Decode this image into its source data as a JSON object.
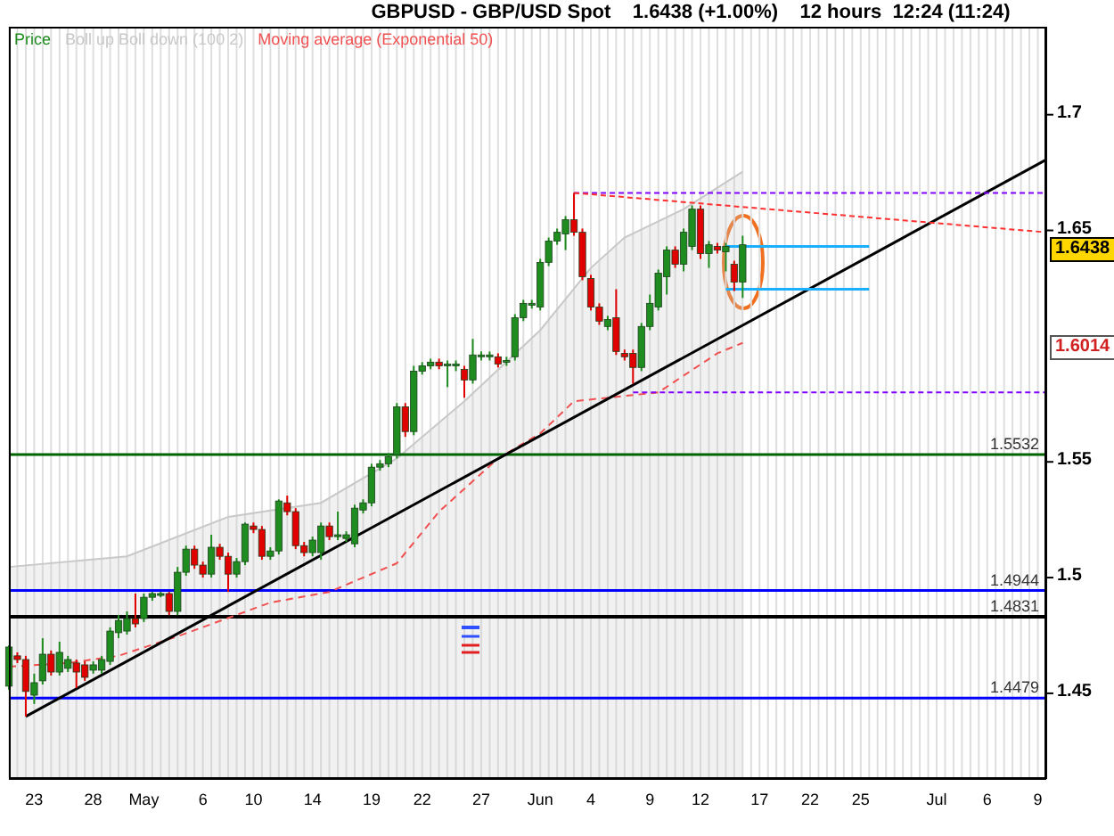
{
  "chart_data": {
    "type": "candlestick",
    "title": "GBPUSD - GBP/USD Spot    1.6438 (+1.00%)    12 hours  12:24 (11:24)",
    "categories": [
      null,
      null,
      null,
      "23",
      null,
      null,
      null,
      null,
      null,
      null,
      "28",
      null,
      null,
      null,
      null,
      null,
      "May",
      null,
      null,
      null,
      null,
      null,
      null,
      "6",
      null,
      null,
      null,
      null,
      null,
      "10",
      null,
      null,
      null,
      null,
      null,
      null,
      "14",
      null,
      null,
      null,
      null,
      null,
      null,
      "19",
      null,
      null,
      null,
      null,
      null,
      "22",
      null,
      null,
      null,
      null,
      null,
      null,
      "27",
      null,
      null,
      null,
      null,
      null,
      null,
      "Jun",
      null,
      null,
      null,
      null,
      null,
      "4",
      null,
      null,
      null,
      null,
      null,
      null,
      "9",
      null,
      null,
      null,
      null,
      null,
      "12",
      null,
      null,
      null,
      null,
      null,
      null,
      "17",
      null,
      null,
      null,
      null,
      null,
      "22",
      null,
      null,
      null,
      null,
      null,
      "25",
      null,
      null,
      null,
      null,
      null,
      null,
      null,
      null,
      "Jul",
      null,
      null,
      null,
      null,
      null,
      "6",
      null,
      null,
      null,
      null,
      null,
      "9",
      null
    ],
    "series": [
      {
        "name": "Boll up Boll down (100 2)",
        "type": "area",
        "color": "#c8c8c8",
        "values": [
          1.5046,
          null,
          null,
          null,
          null,
          null,
          null,
          null,
          null,
          null,
          null,
          null,
          null,
          null,
          1.5092,
          null,
          null,
          null,
          null,
          null,
          null,
          null,
          null,
          null,
          null,
          null,
          1.5262,
          null,
          null,
          null,
          null,
          null,
          null,
          null,
          null,
          null,
          null,
          1.5323,
          null,
          null,
          null,
          null,
          null,
          null,
          null,
          null,
          1.5515,
          null,
          null,
          null,
          null,
          null,
          null,
          null,
          1.5762,
          null,
          null,
          null,
          null,
          null,
          null,
          null,
          null,
          1.6069,
          null,
          null,
          null,
          null,
          null,
          1.6338,
          null,
          null,
          null,
          1.6469,
          null,
          null,
          null,
          null,
          null,
          null,
          1.6592,
          null,
          null,
          null,
          null,
          null,
          null,
          1.6754,
          null,
          null,
          null,
          null,
          null,
          null,
          null,
          null,
          null,
          null,
          null,
          null,
          null,
          null,
          null,
          null,
          null,
          null,
          null,
          null,
          null,
          null,
          null,
          null,
          null,
          null,
          null,
          null,
          null,
          null,
          null,
          null,
          null,
          null,
          null,
          null
        ]
      },
      {
        "name": "Moving average (Exponential 50)",
        "type": "line",
        "color": "#f05050",
        "line_style": "dashed",
        "values": [
          1.4615,
          null,
          null,
          null,
          null,
          null,
          null,
          1.4631,
          null,
          null,
          null,
          null,
          null,
          1.4662,
          null,
          null,
          null,
          null,
          null,
          null,
          1.4746,
          null,
          null,
          null,
          null,
          null,
          null,
          null,
          null,
          null,
          null,
          1.4892,
          null,
          null,
          null,
          null,
          null,
          null,
          1.4938,
          null,
          null,
          null,
          null,
          null,
          null,
          null,
          1.5062,
          null,
          null,
          null,
          null,
          1.5285,
          null,
          null,
          null,
          null,
          null,
          null,
          1.5515,
          null,
          null,
          null,
          null,
          1.5623,
          null,
          null,
          null,
          1.5762,
          null,
          null,
          null,
          null,
          null,
          null,
          null,
          null,
          null,
          1.58,
          null,
          null,
          null,
          null,
          null,
          null,
          1.5969,
          null,
          null,
          1.6014,
          null,
          null,
          null,
          null,
          null,
          null,
          null,
          null,
          null,
          null,
          null,
          null,
          null,
          null,
          null,
          null,
          null,
          null,
          null,
          null,
          null,
          null,
          null,
          null,
          null,
          null,
          null,
          null,
          null,
          null,
          null,
          null,
          null,
          null,
          null,
          null
        ]
      },
      {
        "type": "line",
        "color": "#000000",
        "line_style": "solid",
        "values": [
          null,
          null,
          1.44,
          null,
          null,
          null,
          null,
          null,
          null,
          null,
          null,
          null,
          null,
          null,
          null,
          null,
          null,
          null,
          null,
          null,
          null,
          null,
          null,
          null,
          null,
          null,
          null,
          null,
          null,
          null,
          null,
          null,
          null,
          null,
          null,
          null,
          null,
          null,
          null,
          null,
          null,
          null,
          null,
          null,
          null,
          null,
          null,
          null,
          null,
          null,
          null,
          null,
          null,
          null,
          null,
          null,
          null,
          null,
          null,
          null,
          null,
          null,
          null,
          null,
          null,
          null,
          null,
          null,
          null,
          null,
          null,
          null,
          null,
          null,
          null,
          null,
          null,
          null,
          null,
          null,
          null,
          null,
          null,
          null,
          null,
          null,
          null,
          null,
          null,
          null,
          null,
          null,
          null,
          null,
          null,
          null,
          null,
          null,
          null,
          null,
          null,
          null,
          null,
          null,
          null,
          null,
          null,
          null,
          null,
          null,
          null,
          null,
          null,
          null,
          null,
          null,
          null,
          null,
          null,
          null,
          null,
          null,
          null,
          1.6806
        ]
      },
      {
        "type": "line",
        "color": "#8000ff",
        "line_style": "dotted",
        "values": [
          null,
          null,
          null,
          null,
          null,
          null,
          null,
          null,
          null,
          null,
          null,
          null,
          null,
          null,
          null,
          null,
          null,
          null,
          null,
          null,
          null,
          null,
          null,
          null,
          null,
          null,
          null,
          null,
          null,
          null,
          null,
          null,
          null,
          null,
          null,
          null,
          null,
          null,
          null,
          null,
          null,
          null,
          null,
          null,
          null,
          null,
          null,
          null,
          null,
          null,
          null,
          null,
          null,
          null,
          null,
          null,
          null,
          null,
          null,
          null,
          null,
          null,
          null,
          null,
          null,
          null,
          null,
          1.6662,
          null,
          null,
          null,
          null,
          null,
          null,
          null,
          null,
          null,
          null,
          null,
          null,
          null,
          null,
          null,
          null,
          null,
          null,
          null,
          null,
          null,
          null,
          null,
          null,
          null,
          null,
          null,
          null,
          null,
          null,
          null,
          null,
          null,
          null,
          null,
          null,
          null,
          null,
          null,
          null,
          null,
          null,
          null,
          null,
          null,
          null,
          null,
          null,
          null,
          null,
          null,
          null,
          null,
          null,
          null,
          1.6662
        ]
      },
      {
        "type": "line",
        "color": "#8000ff",
        "line_style": "dotted",
        "values": [
          null,
          null,
          null,
          null,
          null,
          null,
          null,
          null,
          null,
          null,
          null,
          null,
          null,
          null,
          null,
          null,
          null,
          null,
          null,
          null,
          null,
          null,
          null,
          null,
          null,
          null,
          null,
          null,
          null,
          null,
          null,
          null,
          null,
          null,
          null,
          null,
          null,
          null,
          null,
          null,
          null,
          null,
          null,
          null,
          null,
          null,
          null,
          null,
          null,
          null,
          null,
          null,
          null,
          null,
          null,
          null,
          null,
          null,
          null,
          null,
          null,
          null,
          null,
          null,
          null,
          null,
          null,
          null,
          null,
          null,
          null,
          null,
          null,
          null,
          1.58,
          null,
          null,
          null,
          null,
          null,
          null,
          null,
          null,
          null,
          null,
          null,
          null,
          null,
          null,
          null,
          null,
          null,
          null,
          null,
          null,
          null,
          null,
          null,
          null,
          null,
          null,
          null,
          null,
          null,
          null,
          null,
          null,
          null,
          null,
          null,
          null,
          null,
          null,
          null,
          null,
          null,
          null,
          null,
          null,
          null,
          null,
          null,
          null,
          1.58
        ]
      },
      {
        "type": "line",
        "color": "#ff3030",
        "line_style": "dotted",
        "values": [
          null,
          null,
          null,
          null,
          null,
          null,
          null,
          null,
          null,
          null,
          null,
          null,
          null,
          null,
          null,
          null,
          null,
          null,
          null,
          null,
          null,
          null,
          null,
          null,
          null,
          null,
          null,
          null,
          null,
          null,
          null,
          null,
          null,
          null,
          null,
          null,
          null,
          null,
          null,
          null,
          null,
          null,
          null,
          null,
          null,
          null,
          null,
          null,
          null,
          null,
          null,
          null,
          null,
          null,
          null,
          null,
          null,
          null,
          null,
          null,
          null,
          null,
          null,
          null,
          null,
          null,
          null,
          1.6662,
          null,
          null,
          null,
          null,
          null,
          null,
          null,
          null,
          null,
          null,
          null,
          null,
          null,
          null,
          null,
          null,
          null,
          null,
          null,
          null,
          null,
          null,
          null,
          null,
          null,
          null,
          null,
          null,
          null,
          null,
          null,
          null,
          null,
          null,
          null,
          null,
          null,
          null,
          null,
          null,
          null,
          null,
          null,
          null,
          null,
          null,
          null,
          null,
          null,
          null,
          null,
          null,
          null,
          null,
          null,
          1.6492
        ]
      },
      {
        "type": "line",
        "color": "#1ab0ff",
        "line_style": "solid",
        "values": [
          null,
          null,
          null,
          null,
          null,
          null,
          null,
          null,
          null,
          null,
          null,
          null,
          null,
          null,
          null,
          null,
          null,
          null,
          null,
          null,
          null,
          null,
          null,
          null,
          null,
          null,
          null,
          null,
          null,
          null,
          null,
          null,
          null,
          null,
          null,
          null,
          null,
          null,
          null,
          null,
          null,
          null,
          null,
          null,
          null,
          null,
          null,
          null,
          null,
          null,
          null,
          null,
          null,
          null,
          null,
          null,
          null,
          null,
          null,
          null,
          null,
          null,
          null,
          null,
          null,
          null,
          null,
          null,
          null,
          null,
          null,
          null,
          null,
          null,
          null,
          null,
          null,
          null,
          null,
          null,
          null,
          null,
          null,
          null,
          null,
          1.6431,
          null,
          null,
          null,
          null,
          null,
          null,
          null,
          null,
          null,
          null,
          null,
          null,
          null,
          null,
          null,
          null,
          1.6431,
          null,
          null,
          null,
          null,
          null,
          null,
          null,
          null,
          null,
          null,
          null,
          null,
          null,
          null,
          null,
          null,
          null,
          null,
          null,
          null,
          null
        ]
      },
      {
        "type": "line",
        "color": "#1ab0ff",
        "line_style": "solid",
        "values": [
          null,
          null,
          null,
          null,
          null,
          null,
          null,
          null,
          null,
          null,
          null,
          null,
          null,
          null,
          null,
          null,
          null,
          null,
          null,
          null,
          null,
          null,
          null,
          null,
          null,
          null,
          null,
          null,
          null,
          null,
          null,
          null,
          null,
          null,
          null,
          null,
          null,
          null,
          null,
          null,
          null,
          null,
          null,
          null,
          null,
          null,
          null,
          null,
          null,
          null,
          null,
          null,
          null,
          null,
          null,
          null,
          null,
          null,
          null,
          null,
          null,
          null,
          null,
          null,
          null,
          null,
          null,
          null,
          null,
          null,
          null,
          null,
          null,
          null,
          null,
          null,
          null,
          null,
          null,
          null,
          null,
          null,
          null,
          null,
          null,
          1.6246,
          null,
          null,
          null,
          null,
          null,
          null,
          null,
          null,
          null,
          null,
          null,
          null,
          null,
          null,
          null,
          null,
          1.6246,
          null,
          null,
          null,
          null,
          null,
          null,
          null,
          null,
          null,
          null,
          null,
          null,
          null,
          null,
          null,
          null,
          null,
          null,
          null,
          null,
          null
        ]
      },
      {
        "name": "Price",
        "type": "candlestick",
        "color": "#1e8c1e",
        "colors": [
          "#1e8c1e",
          "#e00000",
          "#e00000",
          "#1e8c1e",
          "#1e8c1e",
          "#e00000",
          "#1e8c1e",
          "#1e8c1e",
          "#e00000",
          "#e00000",
          "#1e8c1e",
          "#1e8c1e",
          "#1e8c1e",
          "#1e8c1e",
          "#1e8c1e",
          "#e00000",
          "#1e8c1e",
          "#1e8c1e",
          "#1e8c1e",
          "#e00000",
          "#1e8c1e",
          "#1e8c1e",
          "#e00000",
          "#e00000",
          "#1e8c1e",
          "#e00000",
          "#e00000",
          "#1e8c1e",
          "#1e8c1e",
          "#e00000",
          "#e00000",
          "#1e8c1e",
          "#1e8c1e",
          "#e00000",
          "#e00000",
          "#e00000",
          "#1e8c1e",
          "#1e8c1e",
          "#e00000",
          "#1e8c1e",
          "#1e8c1e",
          "#1e8c1e",
          "#1e8c1e",
          "#1e8c1e",
          "#1e8c1e",
          "#1e8c1e",
          "#1e8c1e",
          "#e00000",
          "#1e8c1e",
          "#1e8c1e",
          "#1e8c1e",
          "#e00000",
          "#1e8c1e",
          "#1e8c1e",
          "#e00000",
          "#1e8c1e",
          "#1e8c1e",
          "#1e8c1e",
          "#e00000",
          "#1e8c1e",
          "#1e8c1e",
          "#1e8c1e",
          "#1e8c1e",
          "#1e8c1e",
          "#1e8c1e",
          "#1e8c1e",
          "#1e8c1e",
          "#e00000",
          "#e00000",
          "#e00000",
          "#e00000",
          "#1e8c1e",
          "#e00000",
          "#e00000",
          "#e00000",
          "#1e8c1e",
          "#1e8c1e",
          "#1e8c1e",
          "#1e8c1e",
          "#e00000",
          "#1e8c1e",
          "#1e8c1e",
          "#e00000",
          "#1e8c1e",
          "#e00000",
          "#1e8c1e",
          "#e00000",
          "#1e8c1e",
          null,
          null,
          null,
          null,
          null,
          null,
          null,
          null,
          null,
          null,
          null,
          null,
          null,
          null,
          null,
          null,
          null,
          null,
          null,
          null,
          null,
          null,
          null,
          null,
          null,
          null,
          null,
          null,
          null,
          null,
          null,
          null,
          null,
          null,
          null,
          null
        ],
        "ohlc": [
          [
            1.4531,
            1.4708,
            1.4515,
            1.47
          ],
          [
            1.4662,
            1.4677,
            1.4631,
            1.4646
          ],
          [
            1.4646,
            1.4662,
            1.44,
            1.4508
          ],
          [
            1.4492,
            1.4585,
            1.4454,
            1.4546
          ],
          [
            1.4554,
            1.4738,
            1.4538,
            1.4669
          ],
          [
            1.4669,
            1.4685,
            1.4577,
            1.4592
          ],
          [
            1.4592,
            1.4723,
            1.4577,
            1.4677
          ],
          [
            1.4608,
            1.4662,
            1.4592,
            1.4646
          ],
          [
            1.4631,
            1.4646,
            1.4523,
            1.4592
          ],
          [
            1.4623,
            1.4638,
            1.4554,
            1.4569
          ],
          [
            1.46,
            1.4638,
            1.4585,
            1.4623
          ],
          [
            1.46,
            1.4662,
            1.4585,
            1.4646
          ],
          [
            1.4638,
            1.4785,
            1.4623,
            1.4769
          ],
          [
            1.4762,
            1.4838,
            1.4738,
            1.4815
          ],
          [
            1.4769,
            1.4854,
            1.4754,
            1.4823
          ],
          [
            1.4823,
            1.4931,
            1.4785,
            1.48
          ],
          [
            1.4823,
            1.4931,
            1.4808,
            1.4915
          ],
          [
            1.4915,
            1.4938,
            1.49,
            1.4931
          ],
          [
            1.4923,
            1.4938,
            1.4915,
            1.4931
          ],
          [
            1.4931,
            1.4938,
            1.4838,
            1.4854
          ],
          [
            1.4854,
            1.5046,
            1.4838,
            1.5023
          ],
          [
            1.5023,
            1.5138,
            1.5008,
            1.5123
          ],
          [
            1.5123,
            1.5138,
            1.5038,
            1.5054
          ],
          [
            1.5054,
            1.5069,
            1.5,
            1.5015
          ],
          [
            1.5015,
            1.5185,
            1.5,
            1.5131
          ],
          [
            1.5131,
            1.5146,
            1.5077,
            1.5092
          ],
          [
            1.5092,
            1.5108,
            1.4938,
            1.5015
          ],
          [
            1.5015,
            1.5085,
            1.5,
            1.5069
          ],
          [
            1.5069,
            1.5238,
            1.5054,
            1.5231
          ],
          [
            1.5223,
            1.5238,
            1.5192,
            1.5208
          ],
          [
            1.5208,
            1.5223,
            1.5077,
            1.5092
          ],
          [
            1.5092,
            1.5131,
            1.5077,
            1.5115
          ],
          [
            1.5115,
            1.5338,
            1.51,
            1.5331
          ],
          [
            1.5323,
            1.5354,
            1.5269,
            1.5285
          ],
          [
            1.5285,
            1.53,
            1.5123,
            1.5138
          ],
          [
            1.5138,
            1.5154,
            1.5092,
            1.5108
          ],
          [
            1.5108,
            1.5177,
            1.5092,
            1.5162
          ],
          [
            1.5108,
            1.5238,
            1.5077,
            1.5223
          ],
          [
            1.5223,
            1.5238,
            1.5162,
            1.5177
          ],
          [
            1.5177,
            1.5285,
            1.5162,
            1.5185
          ],
          [
            1.5169,
            1.52,
            1.5154,
            1.5185
          ],
          [
            1.5146,
            1.5315,
            1.5131,
            1.53
          ],
          [
            1.5292,
            1.5338,
            1.5277,
            1.5323
          ],
          [
            1.5323,
            1.5492,
            1.5308,
            1.5477
          ],
          [
            1.5477,
            1.5508,
            1.5462,
            1.5492
          ],
          [
            1.5492,
            1.5538,
            1.5477,
            1.5523
          ],
          [
            1.5531,
            1.5754,
            1.5515,
            1.5738
          ],
          [
            1.5738,
            1.5754,
            1.5608,
            1.5631
          ],
          [
            1.5631,
            1.5915,
            1.5615,
            1.5892
          ],
          [
            1.5892,
            1.5931,
            1.5877,
            1.5915
          ],
          [
            1.5915,
            1.5946,
            1.59,
            1.5931
          ],
          [
            1.5931,
            1.5946,
            1.59,
            1.5915
          ],
          [
            1.5915,
            1.5938,
            1.5823,
            1.5923
          ],
          [
            1.5915,
            1.5938,
            1.5892,
            1.5923
          ],
          [
            1.59,
            1.5915,
            1.5777,
            1.5854
          ],
          [
            1.5854,
            1.6031,
            1.5838,
            1.5962
          ],
          [
            1.5954,
            1.5977,
            1.5938,
            1.5962
          ],
          [
            1.5954,
            1.5977,
            1.5938,
            1.5962
          ],
          [
            1.5954,
            1.5969,
            1.5908,
            1.5923
          ],
          [
            1.5931,
            1.5954,
            1.5915,
            1.5938
          ],
          [
            1.5954,
            1.6138,
            1.5938,
            1.6123
          ],
          [
            1.6123,
            1.62,
            1.6108,
            1.6185
          ],
          [
            1.6177,
            1.62,
            1.6162,
            1.6185
          ],
          [
            1.6169,
            1.6377,
            1.6154,
            1.6362
          ],
          [
            1.6362,
            1.6469,
            1.6346,
            1.6454
          ],
          [
            1.6454,
            1.6508,
            1.6438,
            1.6492
          ],
          [
            1.6485,
            1.6562,
            1.6415,
            1.6546
          ],
          [
            1.6546,
            1.6662,
            1.6477,
            1.6492
          ],
          [
            1.6492,
            1.6508,
            1.6285,
            1.63
          ],
          [
            1.6292,
            1.6308,
            1.6154,
            1.6169
          ],
          [
            1.6169,
            1.6185,
            1.6092,
            1.6108
          ],
          [
            1.6085,
            1.6131,
            1.6069,
            1.6115
          ],
          [
            1.6123,
            1.6246,
            1.5962,
            1.5977
          ],
          [
            1.5969,
            1.5985,
            1.5938,
            1.5954
          ],
          [
            1.5969,
            1.5985,
            1.5838,
            1.5908
          ],
          [
            1.5908,
            1.61,
            1.5892,
            1.6085
          ],
          [
            1.6085,
            1.6223,
            1.6069,
            1.6185
          ],
          [
            1.6169,
            1.6331,
            1.6154,
            1.6315
          ],
          [
            1.63,
            1.6431,
            1.6223,
            1.6415
          ],
          [
            1.6415,
            1.6431,
            1.6338,
            1.6354
          ],
          [
            1.6354,
            1.6508,
            1.6323,
            1.6492
          ],
          [
            1.6431,
            1.6608,
            1.6415,
            1.6592
          ],
          [
            1.6592,
            1.6608,
            1.6377,
            1.64
          ],
          [
            1.64,
            1.6454,
            1.6338,
            1.6438
          ],
          [
            1.6431,
            1.6446,
            1.64,
            1.6415
          ],
          [
            1.6408,
            1.6446,
            1.6323,
            1.6431
          ],
          [
            1.6354,
            1.6369,
            1.6238,
            1.6277
          ],
          [
            1.6277,
            1.6477,
            1.6208,
            1.6438
          ],
          null,
          null,
          null,
          null,
          null,
          null,
          null,
          null,
          null,
          null,
          null,
          null,
          null,
          null,
          null,
          null,
          null,
          null,
          null,
          null,
          null,
          null,
          null,
          null,
          null,
          null,
          null,
          null,
          null,
          null,
          null,
          null,
          null,
          null,
          null,
          null
        ]
      }
    ],
    "ylim": [
      1.413,
      1.738
    ],
    "yticks": [
      1.45,
      1.5,
      1.55,
      1.65,
      1.7
    ],
    "ref_lines": [
      {
        "axis": "y",
        "value": 1.5532,
        "label": "1.5532",
        "color": "#006400"
      },
      {
        "axis": "y",
        "value": 1.4944,
        "label": "1.4944",
        "color": "#0000ff"
      },
      {
        "axis": "y",
        "value": 1.4831,
        "label": "1.4831",
        "color": "#000000"
      },
      {
        "axis": "y",
        "value": 1.4479,
        "label": "1.4479",
        "color": "#0000ff"
      }
    ],
    "annotations": [
      "1.6438",
      "1.6014"
    ],
    "grid": "x",
    "legend": "top left"
  }
}
